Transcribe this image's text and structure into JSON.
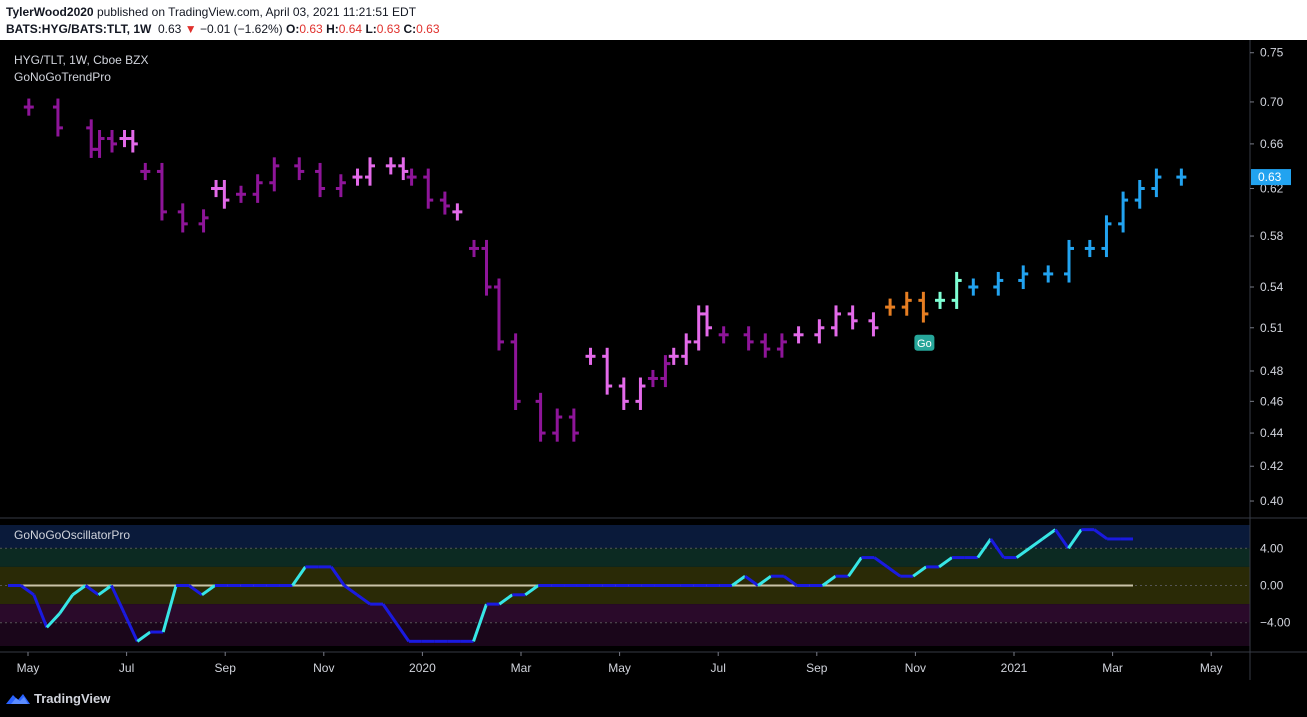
{
  "header": {
    "author": "TylerWood2020",
    "published_text": "published on TradingView.com, April 03, 2021 11:21:51 EDT",
    "symbol": "BATS:HYG/BATS:TLT, 1W",
    "last": "0.63",
    "change_arrow": "▼",
    "change": "−0.01 (−1.62%)",
    "o_label": "O:",
    "o_val": "0.63",
    "h_label": "H:",
    "h_val": "0.64",
    "l_label": "L:",
    "l_val": "0.63",
    "c_label": "C:",
    "c_val": "0.63"
  },
  "legend": {
    "symbol_line": "HYG/TLT, 1W, Cboe BZX",
    "indicator_top": "GoNoGoTrendPro",
    "indicator_bottom": "GoNoGoOscillatorPro"
  },
  "price_label": "0.63",
  "go_label": "Go",
  "footer": {
    "brand": "TradingView"
  },
  "colors": {
    "strong_no_go": "#8e1599",
    "weak_no_go": "#e36ae9",
    "neutral": "#e67e22",
    "weak_go": "#7fffd4",
    "go": "#22a3f0",
    "osc_blue": "#1a1ae0",
    "osc_cyan": "#37e6e6"
  },
  "chart_data": [
    {
      "type": "ohlc",
      "title": "HYG/TLT, 1W, Cboe BZX",
      "y_ticks": [
        "0.75",
        "0.70",
        "0.66",
        "0.62",
        "0.58",
        "0.54",
        "0.51",
        "0.48",
        "0.46",
        "0.44",
        "0.42",
        "0.40"
      ],
      "x_ticks": [
        "May",
        "Jul",
        "Sep",
        "Nov",
        "2020",
        "Mar",
        "May",
        "Jul",
        "Sep",
        "Nov",
        "2021",
        "Mar",
        "May"
      ],
      "scale": "log",
      "ylim": [
        0.395,
        0.755
      ],
      "segments": [
        {
          "state": "strong_no_go",
          "points": [
            [
              0.695,
              0.05
            ],
            [
              0.675,
              0.12
            ],
            [
              0.655,
              0.2
            ],
            [
              0.665,
              0.22
            ],
            [
              0.66,
              0.25
            ]
          ]
        },
        {
          "state": "weak_no_go",
          "points": [
            [
              0.665,
              0.28
            ],
            [
              0.66,
              0.3
            ]
          ]
        },
        {
          "state": "strong_no_go",
          "points": [
            [
              0.635,
              0.33
            ],
            [
              0.6,
              0.37
            ],
            [
              0.59,
              0.42
            ],
            [
              0.595,
              0.47
            ]
          ]
        },
        {
          "state": "weak_no_go",
          "points": [
            [
              0.62,
              0.5
            ],
            [
              0.61,
              0.52
            ]
          ]
        },
        {
          "state": "strong_no_go",
          "points": [
            [
              0.615,
              0.56
            ],
            [
              0.625,
              0.6
            ],
            [
              0.64,
              0.64
            ],
            [
              0.635,
              0.7
            ],
            [
              0.62,
              0.75
            ],
            [
              0.625,
              0.8
            ]
          ]
        },
        {
          "state": "weak_no_go",
          "points": [
            [
              0.63,
              0.84
            ],
            [
              0.64,
              0.87
            ],
            [
              0.64,
              0.92
            ],
            [
              0.635,
              0.95
            ]
          ]
        },
        {
          "state": "strong_no_go",
          "points": [
            [
              0.63,
              0.97
            ],
            [
              0.61,
              1.01
            ],
            [
              0.605,
              1.05
            ]
          ]
        },
        {
          "state": "weak_no_go",
          "points": [
            [
              0.6,
              1.08
            ]
          ]
        },
        {
          "state": "strong_no_go",
          "points": [
            [
              0.57,
              1.12
            ],
            [
              0.54,
              1.15
            ],
            [
              0.5,
              1.18
            ],
            [
              0.46,
              1.22
            ],
            [
              0.44,
              1.28
            ],
            [
              0.45,
              1.32
            ],
            [
              0.44,
              1.36
            ]
          ]
        },
        {
          "state": "weak_no_go",
          "points": [
            [
              0.49,
              1.4
            ],
            [
              0.47,
              1.44
            ],
            [
              0.46,
              1.48
            ],
            [
              0.47,
              1.52
            ]
          ]
        },
        {
          "state": "strong_no_go",
          "points": [
            [
              0.475,
              1.55
            ],
            [
              0.485,
              1.58
            ]
          ]
        },
        {
          "state": "weak_no_go",
          "points": [
            [
              0.49,
              1.6
            ],
            [
              0.5,
              1.63
            ],
            [
              0.52,
              1.66
            ],
            [
              0.51,
              1.68
            ]
          ]
        },
        {
          "state": "strong_no_go",
          "points": [
            [
              0.505,
              1.72
            ],
            [
              0.5,
              1.78
            ],
            [
              0.495,
              1.82
            ],
            [
              0.5,
              1.86
            ]
          ]
        },
        {
          "state": "weak_no_go",
          "points": [
            [
              0.505,
              1.9
            ],
            [
              0.51,
              1.95
            ],
            [
              0.52,
              1.99
            ],
            [
              0.515,
              2.03
            ],
            [
              0.51,
              2.08
            ]
          ]
        },
        {
          "state": "neutral",
          "points": [
            [
              0.525,
              2.12
            ],
            [
              0.53,
              2.16
            ],
            [
              0.52,
              2.2
            ]
          ]
        },
        {
          "state": "weak_go",
          "points": [
            [
              0.53,
              2.24
            ],
            [
              0.545,
              2.28
            ]
          ]
        },
        {
          "state": "go",
          "points": [
            [
              0.54,
              2.32
            ],
            [
              0.545,
              2.38
            ],
            [
              0.55,
              2.44
            ],
            [
              0.55,
              2.5
            ],
            [
              0.57,
              2.55
            ],
            [
              0.57,
              2.6
            ],
            [
              0.59,
              2.64
            ],
            [
              0.61,
              2.68
            ],
            [
              0.62,
              2.72
            ],
            [
              0.63,
              2.76
            ],
            [
              0.63,
              2.82
            ]
          ]
        }
      ]
    },
    {
      "type": "line",
      "title": "GoNoGoOscillatorPro",
      "y_ticks": [
        "4.00",
        "0.00",
        "−4.00"
      ],
      "ylim": [
        -6.5,
        6.5
      ],
      "levels": [
        4.0,
        0.0,
        -4.0
      ],
      "series": [
        {
          "values": [
            0,
            0,
            -1,
            -4.5,
            -3,
            -1,
            0,
            -1,
            0,
            -3,
            -6,
            -5,
            -5,
            0,
            0,
            -1,
            0,
            0,
            0,
            0,
            0,
            0,
            0,
            2,
            2,
            2,
            0,
            -1,
            -2,
            -2,
            -4,
            -6,
            -6,
            -6,
            -6,
            -6,
            -6,
            -2,
            -2,
            -1,
            -1,
            0,
            0,
            0,
            0,
            0,
            0,
            0,
            0,
            0,
            0,
            0,
            0,
            0,
            0,
            0,
            0,
            1,
            0,
            1,
            1,
            0,
            0,
            0,
            1,
            1,
            3,
            3,
            2,
            1,
            1,
            2,
            2,
            3,
            3,
            3,
            5,
            3,
            3,
            4,
            5,
            6,
            4,
            6,
            6,
            5,
            5,
            5
          ]
        }
      ]
    }
  ]
}
